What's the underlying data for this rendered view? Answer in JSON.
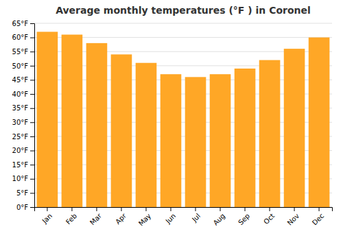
{
  "chart_data": {
    "type": "bar",
    "title": "Average monthly temperatures (°F ) in Coronel",
    "categories": [
      "Jan",
      "Feb",
      "Mar",
      "Apr",
      "May",
      "Jun",
      "Jul",
      "Aug",
      "Sep",
      "Oct",
      "Nov",
      "Dec"
    ],
    "values": [
      62,
      61,
      58,
      54,
      51,
      47,
      46,
      47,
      49,
      52,
      56,
      60
    ],
    "color": "#FFA726",
    "ylim": [
      0,
      65
    ],
    "yticks": [
      {
        "value": 0,
        "label": "0°F"
      },
      {
        "value": 5,
        "label": "5°F"
      },
      {
        "value": 10,
        "label": "10°F"
      },
      {
        "value": 15,
        "label": "15°F"
      },
      {
        "value": 20,
        "label": "20°F"
      },
      {
        "value": 25,
        "label": "25°F"
      },
      {
        "value": 30,
        "label": "30°F"
      },
      {
        "value": 35,
        "label": "35°F"
      },
      {
        "value": 40,
        "label": "40°F"
      },
      {
        "value": 45,
        "label": "45°F"
      },
      {
        "value": 50,
        "label": "50°F"
      },
      {
        "value": 55,
        "label": "55°F"
      },
      {
        "value": 60,
        "label": "60°F"
      },
      {
        "value": 65,
        "label": "65°F"
      }
    ],
    "grid": true
  }
}
